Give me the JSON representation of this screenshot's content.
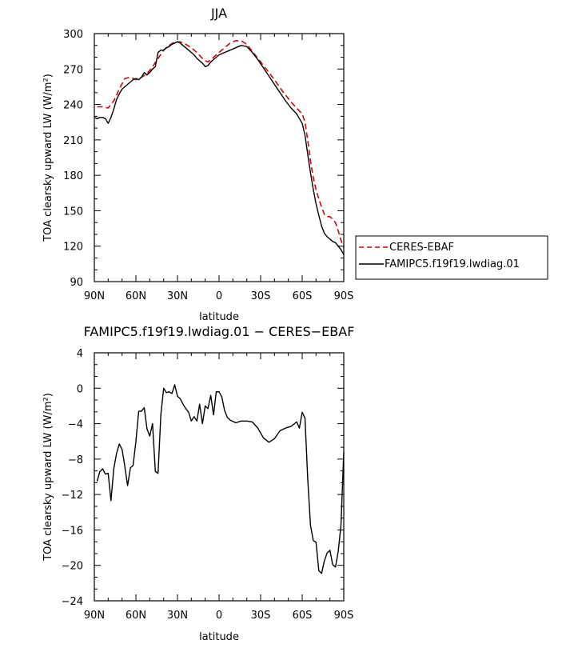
{
  "chart_data": [
    {
      "type": "line",
      "title": "JJA",
      "xlabel": "latitude",
      "ylabel": "TOA clearsky upward LW (W/m²)",
      "xlim": [
        90,
        -90
      ],
      "ylim": [
        90,
        300
      ],
      "xticks": [
        90,
        60,
        30,
        0,
        -30,
        -60,
        -90
      ],
      "xtick_labels": [
        "90N",
        "60N",
        "30N",
        "0",
        "30S",
        "60S",
        "90S"
      ],
      "yticks": [
        90,
        120,
        150,
        180,
        210,
        240,
        270,
        300
      ],
      "ytick_labels": [
        "90",
        "120",
        "150",
        "180",
        "210",
        "240",
        "270",
        "300"
      ],
      "legend": "outside-right",
      "series": [
        {
          "name": "CERES-EBAF",
          "color": "#dd0000",
          "dash": true,
          "x": [
            88,
            84,
            80,
            76,
            72,
            68,
            64,
            60,
            56,
            52,
            48,
            44,
            40,
            36,
            32,
            28,
            24,
            20,
            16,
            12,
            10,
            8,
            4,
            0,
            -4,
            -8,
            -12,
            -16,
            -20,
            -24,
            -28,
            -32,
            -36,
            -40,
            -44,
            -48,
            -52,
            -56,
            -60,
            -62,
            -64,
            -66,
            -68,
            -70,
            -72,
            -74,
            -76,
            -78,
            -80,
            -82,
            -84,
            -86,
            -88,
            -90
          ],
          "y": [
            238,
            238,
            237,
            243,
            253,
            262,
            263,
            261,
            263,
            266,
            272,
            279,
            286,
            290,
            293,
            293,
            291,
            288,
            284,
            279,
            277,
            276,
            280,
            284,
            288,
            292,
            294,
            294,
            291,
            285,
            279,
            273,
            267,
            261,
            254,
            248,
            242,
            237,
            232,
            225,
            210,
            192,
            178,
            168,
            160,
            153,
            147,
            145,
            145,
            143,
            140,
            133,
            125,
            119
          ]
        },
        {
          "name": "FAMIPC5.f19f19.lwdiag.01",
          "color": "#000000",
          "dash": false,
          "x": [
            90,
            88,
            86,
            84,
            82,
            80,
            78,
            76,
            74,
            72,
            70,
            68,
            66,
            64,
            62,
            60,
            58,
            56,
            54,
            52,
            50,
            48,
            46,
            44,
            42,
            40,
            38,
            36,
            34,
            32,
            30,
            28,
            26,
            24,
            22,
            20,
            18,
            16,
            14,
            12,
            10,
            8,
            6,
            4,
            2,
            0,
            -4,
            -8,
            -12,
            -16,
            -20,
            -24,
            -28,
            -32,
            -36,
            -40,
            -44,
            -48,
            -52,
            -56,
            -58,
            -60,
            -62,
            -64,
            -66,
            -68,
            -70,
            -72,
            -74,
            -76,
            -78,
            -80,
            -82,
            -84,
            -86,
            -88,
            -90
          ],
          "y": [
            229,
            228,
            229,
            229,
            228,
            224,
            229,
            236,
            244,
            249,
            253,
            255,
            257,
            259,
            261,
            262,
            261,
            263,
            267,
            265,
            267,
            270,
            272,
            284,
            286,
            286,
            288,
            289,
            291,
            292,
            293,
            292,
            290,
            288,
            286,
            284,
            282,
            279,
            277,
            275,
            272,
            273,
            276,
            278,
            280,
            282,
            284,
            286,
            288,
            290,
            289,
            284,
            278,
            271,
            264,
            257,
            250,
            243,
            237,
            232,
            228,
            224,
            214,
            198,
            182,
            168,
            156,
            146,
            137,
            131,
            128,
            126,
            124,
            123,
            120,
            117,
            113
          ]
        }
      ]
    },
    {
      "type": "line",
      "title": "FAMIPC5.f19f19.lwdiag.01 − CERES−EBAF",
      "xlabel": "latitude",
      "ylabel": "TOA clearsky upward LW (W/m²)",
      "xlim": [
        90,
        -90
      ],
      "ylim": [
        -24,
        4
      ],
      "xticks": [
        90,
        60,
        30,
        0,
        -30,
        -60,
        -90
      ],
      "xtick_labels": [
        "90N",
        "60N",
        "30N",
        "0",
        "30S",
        "60S",
        "90S"
      ],
      "yticks": [
        -24,
        -20,
        -16,
        -12,
        -8,
        -4,
        0,
        4
      ],
      "ytick_labels": [
        "−24",
        "−20",
        "−16",
        "−12",
        "−8",
        "−4",
        "0",
        "4"
      ],
      "series": [
        {
          "color": "#000000",
          "dash": false,
          "x": [
            88,
            86,
            84,
            82,
            80,
            78,
            76,
            74,
            72,
            70,
            68,
            66,
            64,
            62,
            60,
            58,
            56,
            54,
            52,
            50,
            48,
            46,
            44,
            42,
            40,
            38,
            36,
            34,
            32,
            30,
            28,
            26,
            24,
            22,
            20,
            18,
            16,
            14,
            12,
            10,
            8,
            6,
            4,
            2,
            0,
            -2,
            -4,
            -6,
            -8,
            -12,
            -16,
            -20,
            -24,
            -28,
            -32,
            -36,
            -40,
            -44,
            -48,
            -52,
            -56,
            -58,
            -60,
            -62,
            -64,
            -66,
            -68,
            -70,
            -72,
            -74,
            -76,
            -78,
            -80,
            -82,
            -84,
            -86,
            -88,
            -90
          ],
          "y": [
            -10.5,
            -9.4,
            -9.1,
            -9.7,
            -9.6,
            -12.7,
            -9.1,
            -7.4,
            -6.3,
            -6.9,
            -8.8,
            -11.0,
            -9.0,
            -8.7,
            -6.0,
            -2.6,
            -2.6,
            -2.2,
            -4.6,
            -5.4,
            -4.0,
            -9.4,
            -9.6,
            -3.0,
            0.0,
            -0.5,
            -0.4,
            -0.6,
            0.4,
            -0.9,
            -1.2,
            -1.8,
            -2.3,
            -2.7,
            -3.7,
            -3.2,
            -3.7,
            -1.8,
            -4.0,
            -2.0,
            -2.3,
            -0.8,
            -3.0,
            -0.4,
            -0.4,
            -1.0,
            -2.5,
            -3.3,
            -3.6,
            -3.9,
            -3.7,
            -3.7,
            -3.8,
            -4.5,
            -5.6,
            -6.1,
            -5.7,
            -4.8,
            -4.5,
            -4.3,
            -3.8,
            -4.5,
            -2.7,
            -3.4,
            -10.2,
            -15.5,
            -17.2,
            -17.4,
            -20.6,
            -20.9,
            -19.5,
            -18.6,
            -18.3,
            -19.9,
            -20.2,
            -18.4,
            -15.5,
            -7.2
          ]
        }
      ]
    }
  ]
}
